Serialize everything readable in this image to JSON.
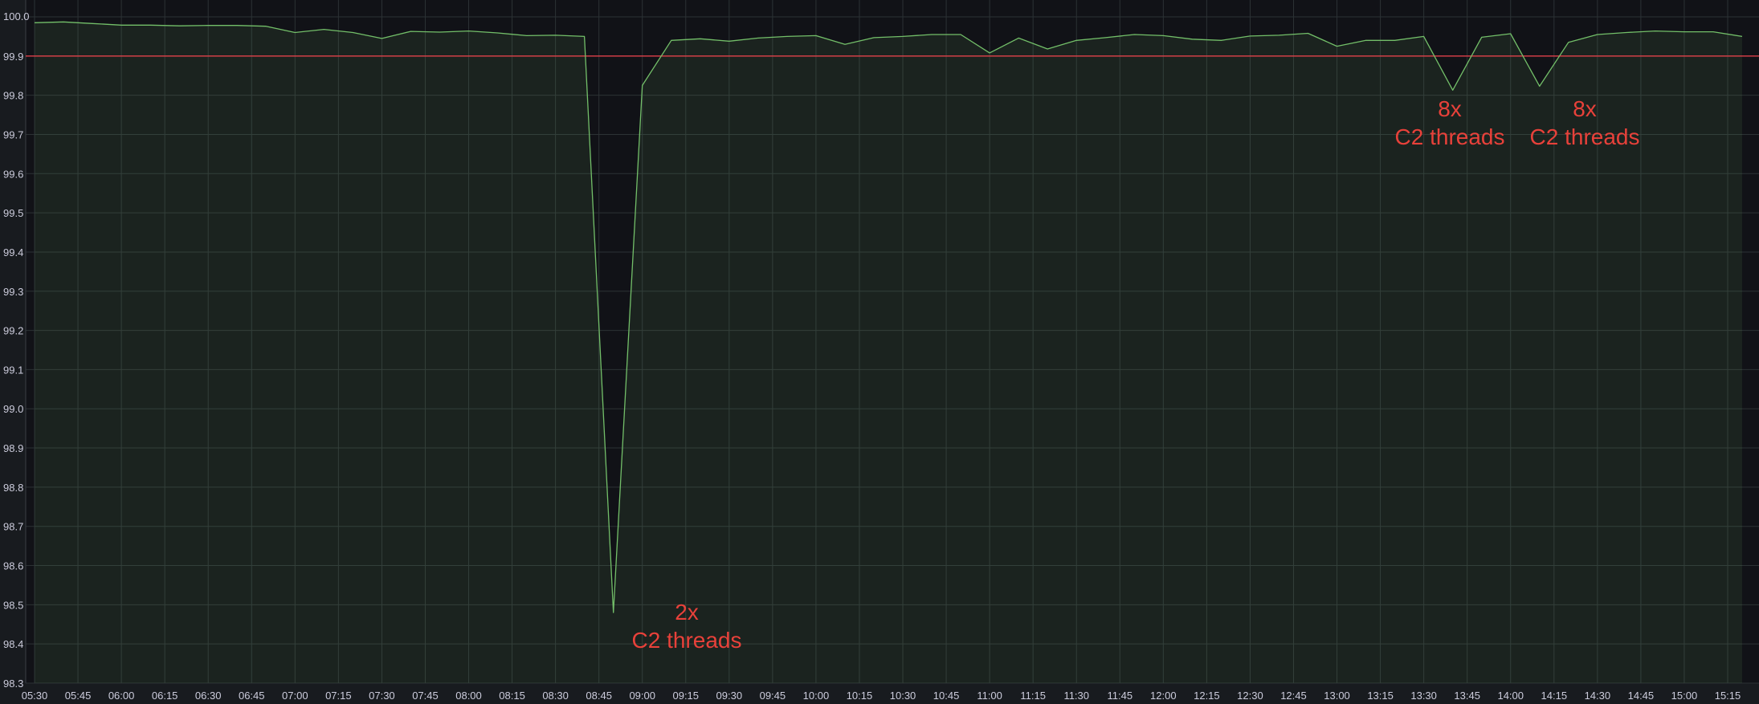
{
  "colors": {
    "background": "#181b1f",
    "plot_background": "#111217",
    "grid": "#2c3235",
    "series_line": "#73bf69",
    "series_fill": "#73bf69",
    "threshold": "#e0404a",
    "annotation": "#e8413a",
    "tick_text": "#ccccdc"
  },
  "chart_data": {
    "type": "area",
    "title": "",
    "xlabel": "",
    "ylabel": "",
    "ylim": [
      98.3,
      100.0
    ],
    "grid": true,
    "legend": "none",
    "y_ticks": [
      "100.0",
      "99.9",
      "99.8",
      "99.7",
      "99.6",
      "99.5",
      "99.4",
      "99.3",
      "99.2",
      "99.1",
      "99.0",
      "98.9",
      "98.8",
      "98.7",
      "98.6",
      "98.5",
      "98.4",
      "98.3"
    ],
    "x_ticks": [
      "05:30",
      "05:45",
      "06:00",
      "06:15",
      "06:30",
      "06:45",
      "07:00",
      "07:15",
      "07:30",
      "07:45",
      "08:00",
      "08:15",
      "08:30",
      "08:45",
      "09:00",
      "09:15",
      "09:30",
      "09:45",
      "10:00",
      "10:15",
      "10:30",
      "10:45",
      "11:00",
      "11:15",
      "11:30",
      "11:45",
      "12:00",
      "12:15",
      "12:30",
      "12:45",
      "13:00",
      "13:15",
      "13:30",
      "13:45",
      "14:00",
      "14:15",
      "14:30",
      "14:45",
      "15:00",
      "15:15"
    ],
    "xlim": [
      "05:30",
      "15:20"
    ],
    "threshold": 99.9,
    "series": [
      {
        "x": [
          "05:30",
          "05:40",
          "05:50",
          "06:00",
          "06:10",
          "06:20",
          "06:30",
          "06:40",
          "06:50",
          "07:00",
          "07:10",
          "07:20",
          "07:30",
          "07:40",
          "07:50",
          "08:00",
          "08:10",
          "08:20",
          "08:30",
          "08:40",
          "08:50",
          "09:00",
          "09:10",
          "09:20",
          "09:30",
          "09:40",
          "09:50",
          "10:00",
          "10:10",
          "10:20",
          "10:30",
          "10:40",
          "10:50",
          "11:00",
          "11:10",
          "11:20",
          "11:30",
          "11:40",
          "11:50",
          "12:00",
          "12:10",
          "12:20",
          "12:30",
          "12:40",
          "12:50",
          "13:00",
          "13:10",
          "13:20",
          "13:30",
          "13:40",
          "13:50",
          "14:00",
          "14:10",
          "14:20",
          "14:30",
          "14:40",
          "14:50",
          "15:00",
          "15:10",
          "15:20"
        ],
        "values": [
          99.985,
          99.987,
          99.983,
          99.979,
          99.979,
          99.977,
          99.978,
          99.978,
          99.976,
          99.96,
          99.968,
          99.96,
          99.945,
          99.963,
          99.961,
          99.964,
          99.959,
          99.952,
          99.953,
          99.95,
          98.48,
          99.825,
          99.94,
          99.944,
          99.938,
          99.946,
          99.95,
          99.952,
          99.93,
          99.947,
          99.95,
          99.955,
          99.955,
          99.908,
          99.946,
          99.918,
          99.94,
          99.947,
          99.955,
          99.952,
          99.943,
          99.94,
          99.951,
          99.953,
          99.958,
          99.925,
          99.94,
          99.94,
          99.95,
          99.813,
          99.948,
          99.957,
          99.823,
          99.935,
          99.955,
          99.96,
          99.964,
          99.962,
          99.962,
          99.95
        ]
      }
    ],
    "annotations": [
      {
        "lines": [
          "2x",
          "C2 threads"
        ],
        "near": "08:50"
      },
      {
        "lines": [
          "8x",
          "C2 threads"
        ],
        "near": "13:40"
      },
      {
        "lines": [
          "8x",
          "C2 threads"
        ],
        "near": "14:10"
      }
    ]
  }
}
